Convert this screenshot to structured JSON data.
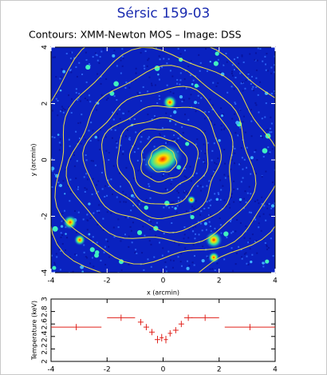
{
  "header": {
    "title": "Sérsic 159-03",
    "subtitle": "Contours: XMM-Newton MOS – Image: DSS"
  },
  "chart_data": [
    {
      "type": "image",
      "xlabel": "x (arcmin)",
      "ylabel": "y (arcmin)",
      "xlim": [
        -4,
        4
      ],
      "ylim": [
        -4,
        4
      ],
      "xticks": [
        -4,
        -2,
        0,
        2,
        4
      ],
      "yticks": [
        -4,
        -2,
        0,
        2,
        4
      ]
    },
    {
      "type": "errorbar",
      "ylabel": "Temperature (keV)",
      "color": "#e0201a",
      "x": [
        -3.1,
        -1.5,
        -0.8,
        -0.6,
        -0.4,
        -0.2,
        -0.05,
        0.1,
        0.25,
        0.45,
        0.65,
        0.9,
        1.5,
        3.1
      ],
      "xerr": [
        0.9,
        0.5,
        0.1,
        0.1,
        0.1,
        0.1,
        0.07,
        0.07,
        0.08,
        0.1,
        0.1,
        0.15,
        0.5,
        0.9
      ],
      "values": [
        2.55,
        2.7,
        2.63,
        2.55,
        2.47,
        2.35,
        2.38,
        2.35,
        2.45,
        2.5,
        2.6,
        2.7,
        2.7,
        2.55
      ],
      "yerr": [
        0.05,
        0.05,
        0.05,
        0.05,
        0.05,
        0.06,
        0.06,
        0.06,
        0.05,
        0.05,
        0.05,
        0.05,
        0.05,
        0.05
      ],
      "xlim": [
        -4,
        4
      ],
      "ylim": [
        2,
        3
      ],
      "xticks": [
        -4,
        -2,
        0,
        2,
        4
      ],
      "yticks": [
        2,
        2.2,
        2.4,
        2.6,
        2.8,
        3
      ]
    }
  ]
}
